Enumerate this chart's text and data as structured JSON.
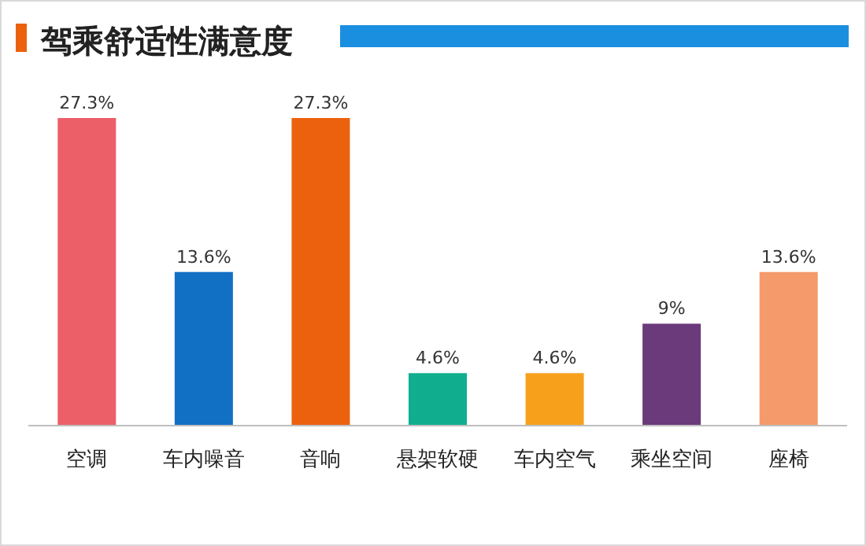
{
  "chart_data": {
    "type": "bar",
    "title": "驾乘舒适性满意度",
    "categories": [
      "空调",
      "车内噪音",
      "音响",
      "悬架软硬",
      "车内空气",
      "乘坐空间",
      "座椅"
    ],
    "values": [
      27.3,
      13.6,
      27.3,
      4.6,
      4.6,
      9,
      13.6
    ],
    "value_labels": [
      "27.3%",
      "13.6%",
      "27.3%",
      "4.6%",
      "4.6%",
      "9%",
      "13.6%"
    ],
    "colors": [
      "#ec5f68",
      "#1170c4",
      "#ec610e",
      "#10ae8e",
      "#f6a01c",
      "#6a3a7b",
      "#f59a6b"
    ]
  }
}
